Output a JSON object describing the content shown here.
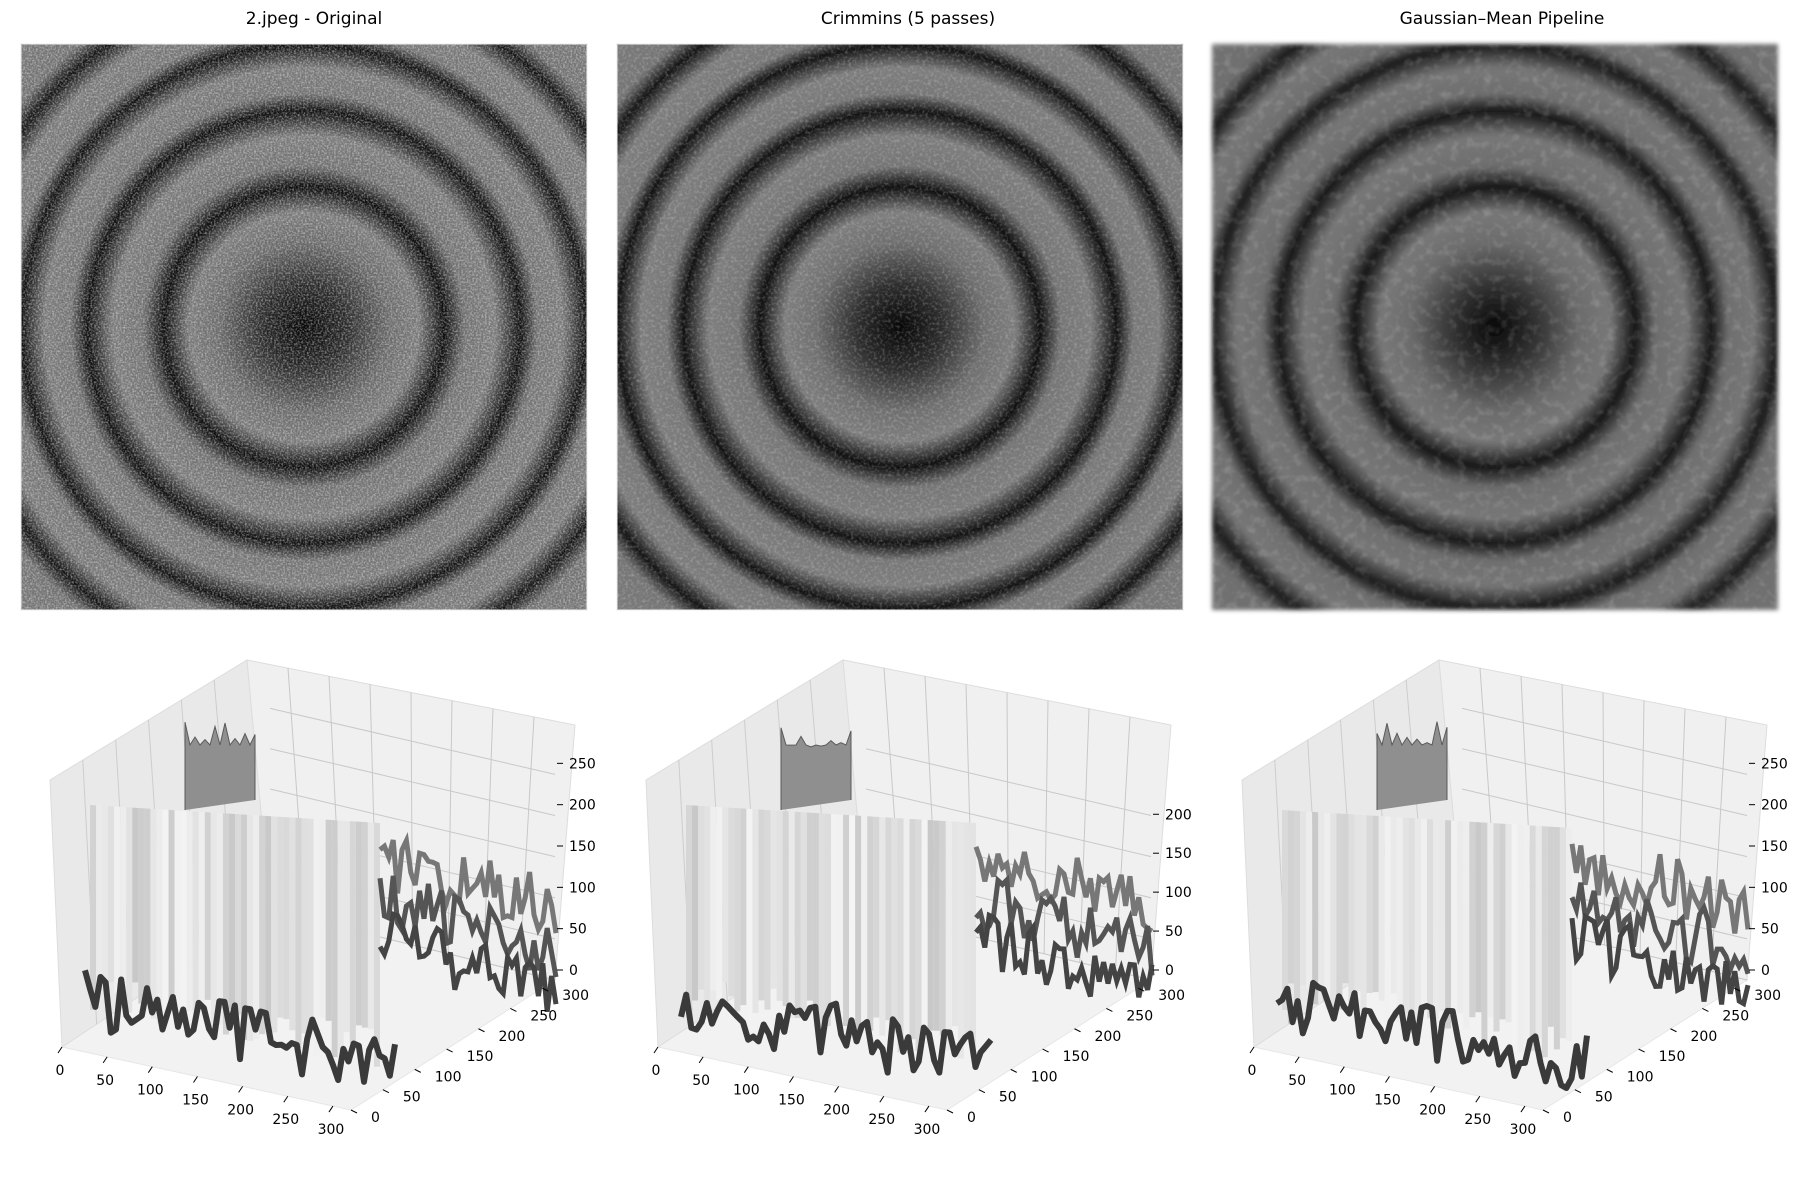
{
  "figure": {
    "background": "#ffffff",
    "panels": [
      {
        "title": "2.jpeg - Original"
      },
      {
        "title": "Crimmins (5 passes)"
      },
      {
        "title": "Gaussian–Mean Pipeline"
      }
    ]
  },
  "chart_data": [
    {
      "type": "heatmap",
      "title": "2.jpeg - Original",
      "colormap": "gray",
      "pattern": "concentric dark rings on speckled gray background, dark center",
      "ring_count_visible": 4,
      "noise": "high"
    },
    {
      "type": "heatmap",
      "title": "Crimmins (5 passes)",
      "colormap": "gray",
      "pattern": "concentric dark rings on speckled gray background, dark center",
      "ring_count_visible": 4,
      "noise": "medium"
    },
    {
      "type": "heatmap",
      "title": "Gaussian–Mean Pipeline",
      "colormap": "gray",
      "pattern": "concentric dark rings on smoothed gray background, dark center",
      "ring_count_visible": 4,
      "noise": "low"
    },
    {
      "type": "surface3d",
      "colormap": "gray",
      "x_ticks": [
        "0",
        "50",
        "100",
        "150",
        "200",
        "250",
        "300"
      ],
      "y_ticks": [
        "0",
        "50",
        "100",
        "150",
        "200",
        "250",
        "300"
      ],
      "z_ticks": [
        "0",
        "50",
        "100",
        "150",
        "200",
        "250"
      ],
      "xlim": [
        0,
        320
      ],
      "ylim": [
        0,
        320
      ],
      "zlim": [
        0,
        255
      ],
      "grid": true
    },
    {
      "type": "surface3d",
      "colormap": "gray",
      "x_ticks": [
        "0",
        "50",
        "100",
        "150",
        "200",
        "250",
        "300"
      ],
      "y_ticks": [
        "0",
        "50",
        "100",
        "150",
        "200",
        "250",
        "300"
      ],
      "z_ticks": [
        "0",
        "50",
        "100",
        "150",
        "200"
      ],
      "xlim": [
        0,
        320
      ],
      "ylim": [
        0,
        320
      ],
      "zlim": [
        0,
        235
      ],
      "grid": true
    },
    {
      "type": "surface3d",
      "colormap": "gray",
      "x_ticks": [
        "0",
        "50",
        "100",
        "150",
        "200",
        "250",
        "300"
      ],
      "y_ticks": [
        "0",
        "50",
        "100",
        "150",
        "200",
        "250",
        "300"
      ],
      "z_ticks": [
        "0",
        "50",
        "100",
        "150",
        "200",
        "250"
      ],
      "xlim": [
        0,
        320
      ],
      "ylim": [
        0,
        320
      ],
      "zlim": [
        0,
        255
      ],
      "grid": true
    }
  ]
}
